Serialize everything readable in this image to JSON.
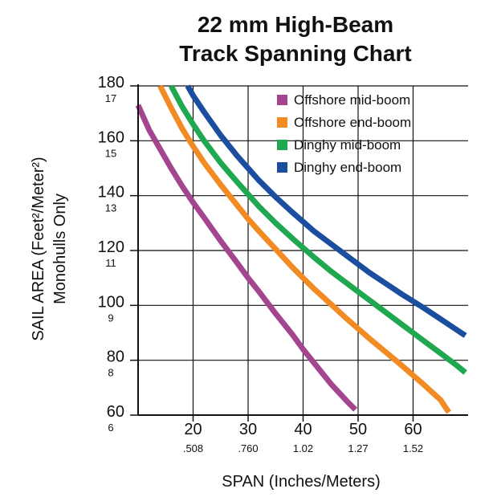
{
  "chart_data": {
    "type": "line",
    "title": "22 mm High-Beam",
    "subtitle": "Track Spanning Chart",
    "xlabel": "SPAN (Inches/Meters)",
    "ylabel": "SAIL AREA (Feet²/Meter²)",
    "ylabel_sub": "Monohulls Only",
    "xlim": [
      10,
      70
    ],
    "ylim": [
      60,
      180
    ],
    "x_ticks": [
      {
        "value": 20,
        "label": "20",
        "sublabel": ".508"
      },
      {
        "value": 30,
        "label": "30",
        "sublabel": ".760"
      },
      {
        "value": 40,
        "label": "40",
        "sublabel": "1.02"
      },
      {
        "value": 50,
        "label": "50",
        "sublabel": "1.27"
      },
      {
        "value": 60,
        "label": "60",
        "sublabel": "1.52"
      }
    ],
    "y_ticks": [
      {
        "value": 180,
        "label": "180",
        "sublabel": "17"
      },
      {
        "value": 160,
        "label": "160",
        "sublabel": "15"
      },
      {
        "value": 140,
        "label": "140",
        "sublabel": "13"
      },
      {
        "value": 120,
        "label": "120",
        "sublabel": "11"
      },
      {
        "value": 100,
        "label": "100",
        "sublabel": "9"
      },
      {
        "value": 80,
        "label": "80",
        "sublabel": "8"
      },
      {
        "value": 60,
        "label": "60",
        "sublabel": "6"
      }
    ],
    "grid": true,
    "legend_position": "top-right",
    "series": [
      {
        "name": "Offshore mid-boom",
        "color": "#A3458F",
        "x": [
          10,
          12,
          14,
          16,
          18,
          20,
          22,
          25,
          28,
          30,
          32,
          35,
          38,
          40,
          42,
          45,
          48,
          49.5
        ],
        "y": [
          173,
          164,
          157,
          150,
          143.5,
          137.5,
          132,
          123.5,
          115.5,
          110,
          105,
          97,
          89.5,
          84,
          79,
          71.5,
          65,
          62
        ]
      },
      {
        "name": "Offshore end-boom",
        "color": "#F28B24",
        "x": [
          14,
          16,
          18,
          20,
          22,
          25,
          28,
          30,
          32,
          35,
          38,
          40,
          42,
          45,
          48,
          50,
          52,
          55,
          58,
          60,
          62,
          65,
          66.5
        ],
        "y": [
          180,
          172,
          164.5,
          158,
          152,
          144,
          136.5,
          131.5,
          127,
          120.5,
          114,
          110,
          106,
          100.5,
          95,
          91.5,
          88,
          83,
          78,
          74.5,
          71,
          65.5,
          61
        ]
      },
      {
        "name": "Dinghy mid-boom",
        "color": "#1FA84F",
        "x": [
          16,
          18,
          20,
          22,
          25,
          28,
          30,
          32,
          35,
          38,
          40,
          42,
          45,
          48,
          50,
          52,
          55,
          58,
          60,
          62,
          65,
          68,
          69.5
        ],
        "y": [
          180,
          172.5,
          166,
          160,
          152,
          145,
          140.5,
          136,
          130,
          124.5,
          121,
          117.5,
          112.5,
          108,
          105,
          102,
          97.5,
          93,
          90,
          87,
          82.5,
          78,
          75.5
        ]
      },
      {
        "name": "Dinghy end-boom",
        "color": "#1B4E9E",
        "x": [
          19,
          20,
          22,
          25,
          28,
          30,
          32,
          35,
          38,
          40,
          42,
          45,
          48,
          50,
          52,
          55,
          58,
          60,
          62,
          65,
          68,
          69.5
        ],
        "y": [
          180,
          176.5,
          170.5,
          162,
          154.5,
          150,
          145.5,
          139.5,
          134,
          130.5,
          127,
          122.5,
          118,
          115,
          112,
          108,
          104,
          101.5,
          99,
          95,
          91,
          89
        ]
      }
    ]
  }
}
